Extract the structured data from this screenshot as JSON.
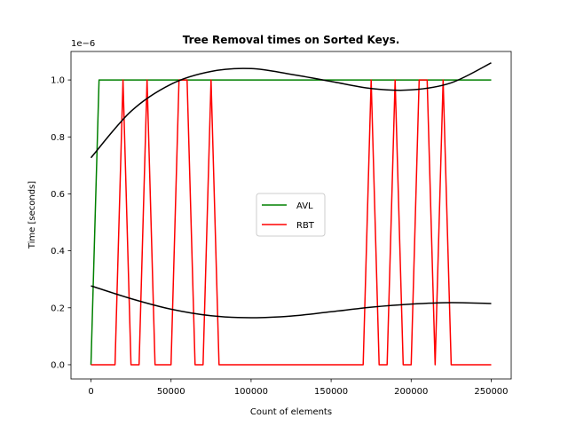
{
  "chart_data": {
    "type": "line",
    "title": "Tree Removal times on Sorted Keys.",
    "xlabel": "Count of elements",
    "ylabel": "Time [seconds]",
    "y_offset_label": "1e−6",
    "xlim": [
      -12500,
      262500
    ],
    "ylim": [
      -0.05,
      1.1
    ],
    "x_ticks": [
      0,
      50000,
      100000,
      150000,
      200000,
      250000
    ],
    "x_tick_labels": [
      "0",
      "50000",
      "100000",
      "150000",
      "200000",
      "250000"
    ],
    "y_ticks": [
      0.0,
      0.2,
      0.4,
      0.6,
      0.8,
      1.0
    ],
    "y_tick_labels": [
      "0.0",
      "0.2",
      "0.4",
      "0.6",
      "0.8",
      "1.0"
    ],
    "grid": false,
    "legend_position": "center",
    "series": [
      {
        "name": "AVL",
        "color": "#008000",
        "x": [
          0,
          5000,
          250000
        ],
        "y": [
          0,
          1.0,
          1.0
        ]
      },
      {
        "name": "RBT",
        "color": "#ff0000",
        "x": [
          0,
          15000,
          20000,
          25000,
          30000,
          35000,
          40000,
          50000,
          55000,
          60000,
          65000,
          70000,
          75000,
          80000,
          170000,
          175000,
          180000,
          185000,
          190000,
          195000,
          200000,
          205000,
          210000,
          215000,
          220000,
          225000,
          250000
        ],
        "y": [
          0,
          0,
          1.0,
          0,
          0,
          1.0,
          0,
          0,
          1.0,
          1.0,
          0,
          0,
          1.0,
          0,
          0,
          1.0,
          0,
          0,
          1.0,
          0,
          0,
          1.0,
          1.0,
          0,
          1.0,
          0,
          0
        ]
      }
    ],
    "trend_lines": [
      {
        "color": "#000000",
        "x": [
          0,
          25000,
          50000,
          75000,
          100000,
          125000,
          150000,
          175000,
          200000,
          225000,
          250000
        ],
        "y": [
          0.727,
          0.89,
          0.985,
          1.03,
          1.04,
          1.02,
          0.995,
          0.97,
          0.965,
          0.99,
          1.06
        ]
      },
      {
        "color": "#000000",
        "x": [
          0,
          25000,
          50000,
          75000,
          100000,
          125000,
          150000,
          175000,
          200000,
          225000,
          250000
        ],
        "y": [
          0.277,
          0.232,
          0.195,
          0.172,
          0.165,
          0.171,
          0.186,
          0.202,
          0.213,
          0.218,
          0.215
        ]
      }
    ]
  }
}
